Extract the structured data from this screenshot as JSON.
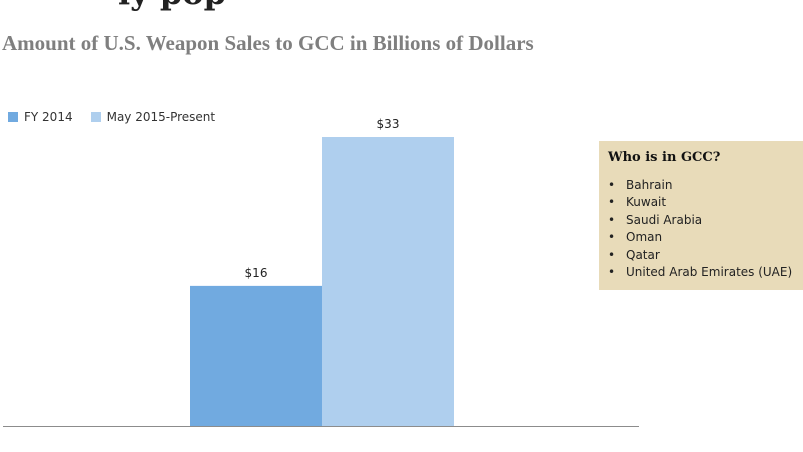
{
  "header": {
    "cut_off_text": "ly pop"
  },
  "chart_data": {
    "type": "bar",
    "title": "Amount of U.S. Weapon Sales to GCC in Billions of Dollars",
    "categories": [
      ""
    ],
    "series": [
      {
        "name": "FY 2014",
        "values": [
          16
        ],
        "label": "$16",
        "color": "#71aae0"
      },
      {
        "name": "May 2015-Present",
        "values": [
          33
        ],
        "label": "$33",
        "color": "#afcfee"
      }
    ],
    "ylim": [
      0,
      33
    ],
    "grid": false,
    "legend_position": "top-left",
    "xlabel": "",
    "ylabel": ""
  },
  "info_box": {
    "title": "Who is in GCC?",
    "bullet": "•",
    "items": [
      "Bahrain",
      "Kuwait",
      "Saudi Arabia",
      "Oman",
      "Qatar",
      "United Arab Emirates (UAE)"
    ],
    "background_color": "#e8dbb9"
  }
}
